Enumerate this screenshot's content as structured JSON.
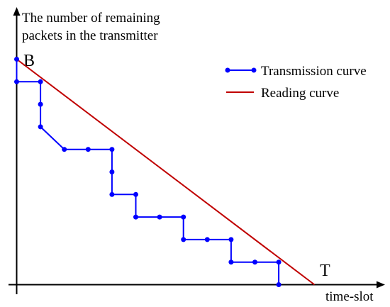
{
  "chart_data": {
    "type": "line",
    "ylabel_lines": [
      "The number of remaining",
      "packets in the transmitter"
    ],
    "xlabel": "time-slot",
    "annotations": {
      "start_label": "B",
      "end_label": "T"
    },
    "legend": {
      "placement": "top-right",
      "entries": [
        {
          "name": "Transmission curve",
          "color": "#0000ff",
          "marker": "dot"
        },
        {
          "name": "Reading curve",
          "color": "#c00000",
          "marker": "none"
        }
      ]
    },
    "series": [
      {
        "name": "Transmission curve",
        "color": "#0000ff",
        "kind": "step",
        "x": [
          0,
          0,
          1,
          1,
          1,
          2,
          3,
          4,
          4,
          4,
          5,
          5,
          6,
          7,
          7,
          8,
          9,
          9,
          10,
          11,
          11
        ],
        "y": [
          10,
          9,
          9,
          8,
          7,
          6,
          6,
          6,
          5,
          4,
          4,
          3,
          3,
          3,
          2,
          2,
          2,
          1,
          1,
          1,
          0
        ]
      },
      {
        "name": "Reading curve",
        "color": "#c00000",
        "kind": "line",
        "x": [
          0,
          12.5
        ],
        "y": [
          10,
          0
        ]
      }
    ],
    "xlim": [
      0,
      15
    ],
    "ylim": [
      0,
      12
    ],
    "grid": false
  }
}
